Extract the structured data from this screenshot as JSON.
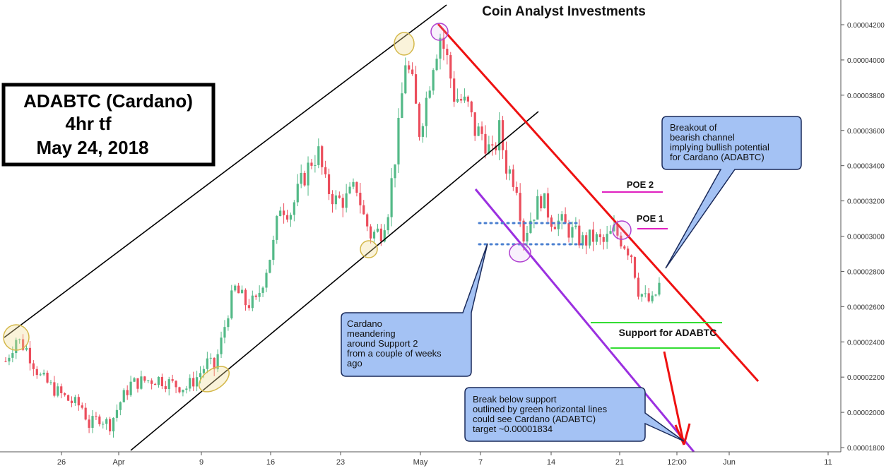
{
  "chart_data": {
    "type": "candlestick",
    "title": "Coin Analyst Investments",
    "info_box": {
      "line1": "ADABTC (Cardano)",
      "line2": "4hr tf",
      "line3": "May 24, 2018"
    },
    "y_ticks": [
      "0.00004200",
      "0.00004000",
      "0.00003800",
      "0.00003600",
      "0.00003400",
      "0.00003200",
      "0.00003000",
      "0.00002800",
      "0.00002600",
      "0.00002400",
      "0.00002200",
      "0.00002000",
      "0.00001800"
    ],
    "x_ticks": [
      "26",
      "Apr",
      "9",
      "16",
      "23",
      "May",
      "7",
      "14",
      "21",
      "12:00",
      "Jun",
      "11"
    ],
    "ylim": [
      1.78e-05,
      4.32e-05
    ],
    "close_series": [
      {
        "t": 0,
        "v": 2.29e-05
      },
      {
        "t": 3,
        "v": 2.42e-05
      },
      {
        "t": 6,
        "v": 2.36e-05
      },
      {
        "t": 10,
        "v": 2.2e-05
      },
      {
        "t": 14,
        "v": 2.13e-05
      },
      {
        "t": 18,
        "v": 2.07e-05
      },
      {
        "t": 22,
        "v": 2.03e-05
      },
      {
        "t": 24,
        "v": 1.93e-05
      },
      {
        "t": 27,
        "v": 1.97e-05
      },
      {
        "t": 30,
        "v": 1.93e-05
      },
      {
        "t": 33,
        "v": 2.06e-05
      },
      {
        "t": 36,
        "v": 2.16e-05
      },
      {
        "t": 40,
        "v": 2.18e-05
      },
      {
        "t": 44,
        "v": 2.19e-05
      },
      {
        "t": 48,
        "v": 2.16e-05
      },
      {
        "t": 52,
        "v": 2.14e-05
      },
      {
        "t": 55,
        "v": 2.2e-05
      },
      {
        "t": 58,
        "v": 2.28e-05
      },
      {
        "t": 60,
        "v": 2.25e-05
      },
      {
        "t": 62,
        "v": 2.4e-05
      },
      {
        "t": 64,
        "v": 2.58e-05
      },
      {
        "t": 66,
        "v": 2.7e-05
      },
      {
        "t": 69,
        "v": 2.62e-05
      },
      {
        "t": 72,
        "v": 2.62e-05
      },
      {
        "t": 75,
        "v": 2.82e-05
      },
      {
        "t": 77,
        "v": 2.95e-05
      },
      {
        "t": 79,
        "v": 3.18e-05
      },
      {
        "t": 82,
        "v": 3.14e-05
      },
      {
        "t": 85,
        "v": 3.3e-05
      },
      {
        "t": 88,
        "v": 3.43e-05
      },
      {
        "t": 90,
        "v": 3.47e-05
      },
      {
        "t": 92,
        "v": 3.29e-05
      },
      {
        "t": 95,
        "v": 3.2e-05
      },
      {
        "t": 98,
        "v": 3.21e-05
      },
      {
        "t": 101,
        "v": 3.28e-05
      },
      {
        "t": 103,
        "v": 3.11e-05
      },
      {
        "t": 105,
        "v": 3.01e-05
      },
      {
        "t": 108,
        "v": 3.03e-05
      },
      {
        "t": 110,
        "v": 3.16e-05
      },
      {
        "t": 113,
        "v": 3.6e-05
      },
      {
        "t": 115,
        "v": 4e-05
      },
      {
        "t": 117,
        "v": 3.85e-05
      },
      {
        "t": 119,
        "v": 3.6e-05
      },
      {
        "t": 121,
        "v": 3.78e-05
      },
      {
        "t": 123,
        "v": 4e-05
      },
      {
        "t": 125,
        "v": 4.14e-05
      },
      {
        "t": 127,
        "v": 4e-05
      },
      {
        "t": 129,
        "v": 3.8e-05
      },
      {
        "t": 131,
        "v": 3.77e-05
      },
      {
        "t": 133,
        "v": 3.73e-05
      },
      {
        "t": 135,
        "v": 3.6e-05
      },
      {
        "t": 137,
        "v": 3.58e-05
      },
      {
        "t": 140,
        "v": 3.45e-05
      },
      {
        "t": 142,
        "v": 3.6e-05
      },
      {
        "t": 144,
        "v": 3.4e-05
      },
      {
        "t": 147,
        "v": 3.3e-05
      },
      {
        "t": 149,
        "v": 3e-05
      },
      {
        "t": 151,
        "v": 3.1e-05
      },
      {
        "t": 154,
        "v": 3.22e-05
      },
      {
        "t": 157,
        "v": 3.1e-05
      },
      {
        "t": 160,
        "v": 3.07e-05
      },
      {
        "t": 163,
        "v": 3.02e-05
      },
      {
        "t": 166,
        "v": 2.97e-05
      },
      {
        "t": 169,
        "v": 2.99e-05
      },
      {
        "t": 172,
        "v": 2.96e-05
      },
      {
        "t": 175,
        "v": 3.03e-05
      },
      {
        "t": 178,
        "v": 2.96e-05
      },
      {
        "t": 180,
        "v": 2.9e-05
      },
      {
        "t": 182,
        "v": 2.7e-05
      },
      {
        "t": 184,
        "v": 2.64e-05
      },
      {
        "t": 186,
        "v": 2.62e-05
      },
      {
        "t": 188,
        "v": 2.72e-05
      }
    ],
    "annotations": {
      "poe2": "POE 2",
      "poe1": "POE 1",
      "support_label": "Support for ADABTC",
      "callout_breakout": [
        "Breakout of",
        "bearish channel",
        "implying bullish potential",
        "for Cardano (ADABTC)"
      ],
      "callout_meander": [
        "Cardano",
        "meandering",
        "around Support 2",
        "from a couple of weeks",
        "ago"
      ],
      "callout_breakdown": [
        "Break below support",
        "outlined by green horizontal lines",
        "could see Cardano (ADABTC)",
        "target ~0.00001834"
      ]
    },
    "colors": {
      "up": "#53b987",
      "down": "#eb4d5c",
      "channel": "#000000",
      "resistance": "#ee1111",
      "purple": "#9b30e0",
      "support": "#33dd33",
      "dotted": "#4a7fd0",
      "poe": "#e020c0",
      "callout_fill": "#a4c2f4",
      "circle_yellow": "#d4b84a",
      "circle_purple": "#b040d0"
    }
  }
}
